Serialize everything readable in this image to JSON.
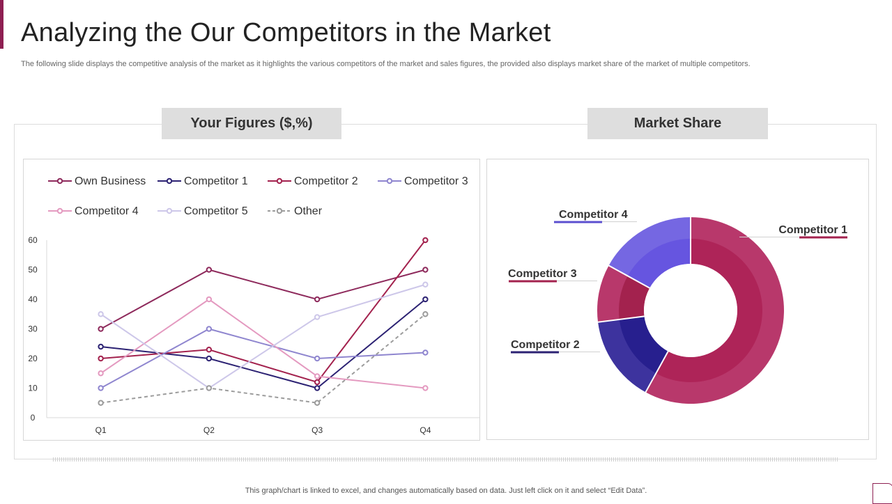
{
  "page": {
    "title": "Analyzing the Our Competitors in the Market",
    "subtitle": "The following slide displays the competitive analysis  of the market as it highlights the various competitors of the market and sales figures, the provided also displays market share of the market of multiple competitors.",
    "tab_left": "Your Figures ($,%)",
    "tab_right": "Market Share",
    "footnote": "This graph/chart is linked to excel,  and changes automatically based on data. Just left click on it and select “Edit Data”.",
    "accent_color": "#8e1f52"
  },
  "chart_data": [
    {
      "type": "line",
      "title": "",
      "xlabel": "",
      "ylabel": "",
      "categories": [
        "Q1",
        "Q2",
        "Q3",
        "Q4"
      ],
      "ylim": [
        0,
        60
      ],
      "yticks": [
        0,
        10,
        20,
        30,
        40,
        50,
        60
      ],
      "legend_position": "top",
      "series": [
        {
          "name": "Own Business",
          "values": [
            30,
            50,
            40,
            50
          ],
          "color": "#8e2a5c",
          "dashed": false
        },
        {
          "name": "Competitor 1",
          "values": [
            24,
            20,
            10,
            40
          ],
          "color": "#2c2273",
          "dashed": false
        },
        {
          "name": "Competitor 2",
          "values": [
            20,
            23,
            12,
            60
          ],
          "color": "#a3224e",
          "dashed": false
        },
        {
          "name": "Competitor 3",
          "values": [
            10,
            30,
            20,
            22
          ],
          "color": "#8f86cf",
          "dashed": false
        },
        {
          "name": "Competitor 4",
          "values": [
            15,
            40,
            14,
            10
          ],
          "color": "#e49ac0",
          "dashed": false
        },
        {
          "name": "Competitor 5",
          "values": [
            35,
            10,
            34,
            45
          ],
          "color": "#cdc7e9",
          "dashed": false
        },
        {
          "name": "Other",
          "values": [
            5,
            10,
            5,
            35
          ],
          "color": "#9c9c9c",
          "dashed": true
        }
      ]
    },
    {
      "type": "pie",
      "title": "",
      "slices": [
        {
          "name": "Competitor 1",
          "value": 58,
          "color": "#ae2458",
          "outer_color": "#b8386b",
          "line_color": "#a3224e"
        },
        {
          "name": "Competitor 2",
          "value": 15,
          "color": "#271f8e",
          "outer_color": "#3d339e",
          "line_color": "#2c2273"
        },
        {
          "name": "Competitor 3",
          "value": 10,
          "color": "#a3224e",
          "outer_color": "#b8386b",
          "line_color": "#a3224e"
        },
        {
          "name": "Competitor 4",
          "value": 17,
          "color": "#6655e0",
          "outer_color": "#7567e2",
          "line_color": "#5b4fcf"
        }
      ]
    }
  ]
}
